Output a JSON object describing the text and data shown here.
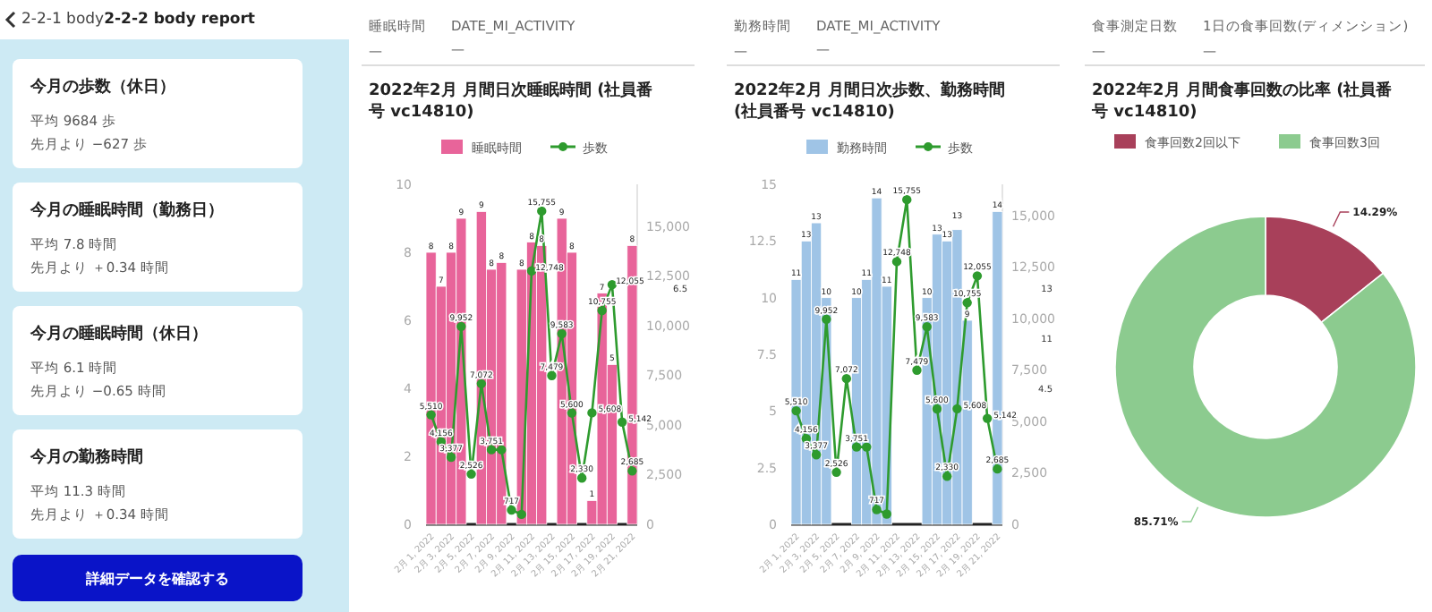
{
  "chart_data": [
    {
      "type": "other",
      "title": "2-2-2 body report",
      "annotations": [
        "2-2-1 body",
        "今月の歩数（休日）",
        "平均 9684 歩",
        "先月より −627 歩",
        "今月の睡眠時間（勤務日）",
        "平均 7.8 時間",
        "先月より ＋0.34 時間",
        "今月の睡眠時間（休日）",
        "平均 6.1 時間",
        "先月より −0.65 時間",
        "今月の勤務時間",
        "平均 11.3 時間",
        "先月より ＋0.34 時間",
        "詳細データを確認する"
      ]
    },
    {
      "type": "bar",
      "title": "2022年2月 月間日次睡眠時間 (社員番号 vc14810)",
      "annotations": [
        "睡眠時間",
        "—",
        "DATE_MI_ACTIVITY",
        "—",
        "6.5"
      ],
      "legend": "top",
      "marker": "circle",
      "categories": [
        "2月 1, 2022",
        null,
        "2月 3, 2022",
        null,
        "2月 5, 2022",
        null,
        "2月 7, 2022",
        null,
        "2月 9, 2022",
        null,
        "2月 11, 2022",
        null,
        "2月 13, 2022",
        null,
        "2月 15, 2022",
        null,
        "2月 17, 2022",
        null,
        "2月 19, 2022",
        null,
        "2月 21, 2022"
      ],
      "ylim": [
        0,
        10
      ],
      "yticks": [
        0,
        2,
        4,
        6,
        8,
        10
      ],
      "y2lim": [
        0,
        17100
      ],
      "y2ticks": [
        0,
        {
          "value": 2500,
          "label": "2,500"
        },
        {
          "value": 5000,
          "label": "5,000"
        },
        {
          "value": 7500,
          "label": "7,500"
        },
        {
          "value": 10000,
          "label": "10,000"
        },
        {
          "value": 12500,
          "label": "12,500"
        },
        {
          "value": 15000,
          "label": "15,000"
        }
      ],
      "series": [
        {
          "name": "睡眠時間",
          "type": "bar",
          "color": "#e8649a",
          "values": [
            8,
            7,
            8,
            9,
            null,
            9.2,
            7.5,
            7.7,
            null,
            7.5,
            8.3,
            8.2,
            null,
            9,
            8,
            null,
            0.7,
            6.8,
            4.7,
            null,
            8.2
          ],
          "value_labels": [
            "8",
            "7",
            "8",
            "9",
            null,
            "9",
            "8",
            "8",
            null,
            "8",
            "8",
            "8",
            null,
            "9",
            "8",
            null,
            "1",
            "7",
            "5",
            null,
            "8"
          ]
        },
        {
          "name": "歩数",
          "type": "line",
          "axis": "y2",
          "color": "#2e9b2e",
          "values": [
            5510,
            4156,
            3377,
            9952,
            2526,
            7072,
            3751,
            3751,
            717,
            500,
            12748,
            15755,
            7479,
            9583,
            5600,
            2330,
            5608,
            10755,
            12055,
            5142,
            2685
          ],
          "value_labels": [
            "5,510",
            "4,156",
            "3,377",
            "9,952",
            "2,526",
            "7,072",
            "3,751",
            null,
            "717",
            null,
            "12,748",
            "15,755",
            "7,479",
            "9,583",
            "5,600",
            "2,330",
            "5,608",
            "10,755",
            "12,055",
            "5,142",
            "2,685"
          ]
        }
      ]
    },
    {
      "type": "bar",
      "title": "2022年2月 月間日次歩数、勤務時間 (社員番号 vc14810)",
      "annotations": [
        "勤務時間",
        "—",
        "DATE_MI_ACTIVITY",
        "—",
        "13",
        "11",
        "4.5"
      ],
      "legend": "top",
      "marker": "circle",
      "categories": [
        "2月 1, 2022",
        null,
        "2月 3, 2022",
        null,
        "2月 5, 2022",
        null,
        "2月 7, 2022",
        null,
        "2月 9, 2022",
        null,
        "2月 11, 2022",
        null,
        "2月 13, 2022",
        null,
        "2月 15, 2022",
        null,
        "2月 17, 2022",
        null,
        "2月 19, 2022",
        null,
        "2月 21, 2022"
      ],
      "ylim": [
        0,
        15
      ],
      "yticks": [
        0,
        2.5,
        5,
        7.5,
        10,
        12.5,
        15
      ],
      "y2lim": [
        0,
        16500
      ],
      "y2ticks": [
        0,
        {
          "value": 2500,
          "label": "2,500"
        },
        {
          "value": 5000,
          "label": "5,000"
        },
        {
          "value": 7500,
          "label": "7,500"
        },
        {
          "value": 10000,
          "label": "10,000"
        },
        {
          "value": 12500,
          "label": "12,500"
        },
        {
          "value": 15000,
          "label": "15,000"
        }
      ],
      "series": [
        {
          "name": "勤務時間",
          "type": "bar",
          "color": "#9fc4e6",
          "values": [
            10.8,
            12.5,
            13.3,
            10,
            null,
            null,
            10,
            10.8,
            14.4,
            10.5,
            null,
            null,
            null,
            10,
            12.8,
            12.5,
            13,
            9,
            null,
            null,
            13.8
          ],
          "value_labels": [
            "11",
            "13",
            "13",
            "10",
            null,
            null,
            "10",
            "11",
            "14",
            "11",
            null,
            null,
            null,
            "10",
            "13",
            "13",
            "13",
            "9",
            null,
            null,
            "14"
          ]
        },
        {
          "name": "歩数",
          "type": "line",
          "axis": "y2",
          "color": "#2e9b2e",
          "values": [
            5510,
            4156,
            3377,
            9952,
            2526,
            7072,
            3751,
            3751,
            717,
            500,
            12748,
            15755,
            7479,
            9583,
            5600,
            2330,
            5608,
            10755,
            12055,
            5142,
            2685
          ],
          "value_labels": [
            "5,510",
            "4,156",
            "3,377",
            "9,952",
            "2,526",
            "7,072",
            "3,751",
            null,
            "717",
            null,
            "12,748",
            "15,755",
            "7,479",
            "9,583",
            "5,600",
            "2,330",
            "5,608",
            "10,755",
            "12,055",
            "5,142",
            "2,685"
          ]
        }
      ]
    },
    {
      "type": "donut",
      "title": "2022年2月 月間食事回数の比率 (社員番号 vc14810)",
      "annotations": [
        "食事測定日数",
        "—",
        "1日の食事回数(ディメンション)",
        "—"
      ],
      "legend": "top",
      "categories": [
        "食事回数2回以下",
        "食事回数3回"
      ],
      "values": [
        14.29,
        85.71
      ],
      "value_labels": [
        "14.29%",
        "85.71%"
      ],
      "colors": [
        "#a8405a",
        "#8ccb8f"
      ]
    }
  ]
}
